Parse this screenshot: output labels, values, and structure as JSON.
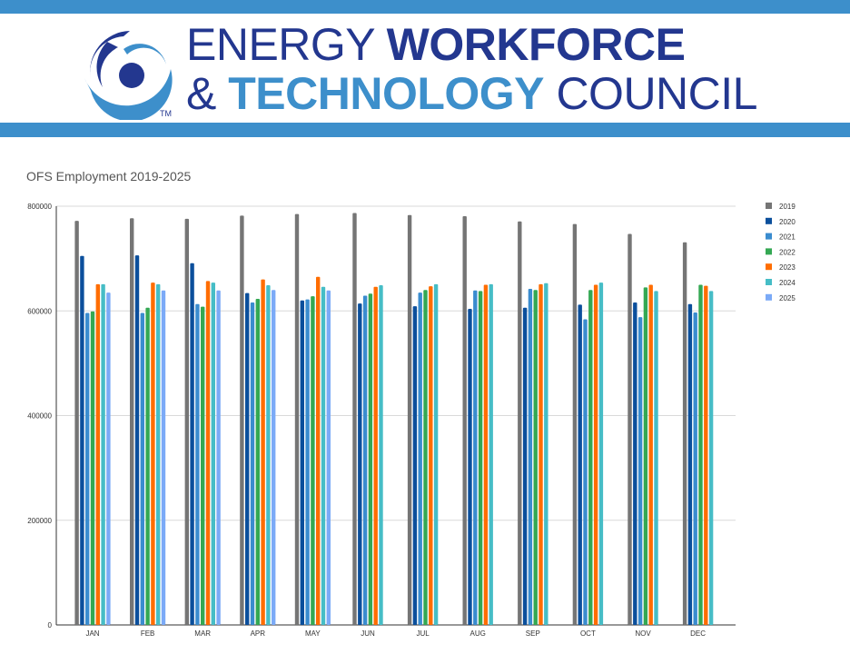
{
  "header": {
    "line1_thin": "ENERGY ",
    "line1_bold": "WORKFORCE",
    "line2_amp": "& ",
    "line2_bold": "TECHNOLOGY",
    "line2_thin": " COUNCIL",
    "trademark": "TM",
    "band_color": "#3d8fcb"
  },
  "chart_data": {
    "type": "bar",
    "title": "OFS Employment 2019-2025",
    "xlabel": "",
    "ylabel": "",
    "ylim": [
      0,
      800000
    ],
    "yticks": [
      "0",
      "200000",
      "400000",
      "600000",
      "800000"
    ],
    "grid": true,
    "legend_position": "right",
    "categories": [
      "JAN",
      "FEB",
      "MAR",
      "APR",
      "MAY",
      "JUN",
      "JUL",
      "AUG",
      "SEP",
      "OCT",
      "NOV",
      "DEC"
    ],
    "series": [
      {
        "name": "2019",
        "color": "#757575",
        "values": [
          772000,
          777000,
          776000,
          782000,
          785000,
          787000,
          783000,
          781000,
          771000,
          766000,
          747000,
          731000
        ]
      },
      {
        "name": "2020",
        "color": "#0b4f9c",
        "values": [
          705000,
          706000,
          691000,
          634000,
          620000,
          614000,
          609000,
          604000,
          606000,
          612000,
          616000,
          613000
        ]
      },
      {
        "name": "2021",
        "color": "#3a8ccf",
        "values": [
          596000,
          596000,
          613000,
          616000,
          622000,
          629000,
          635000,
          639000,
          642000,
          584000,
          588000,
          597000
        ]
      },
      {
        "name": "2022",
        "color": "#34a853",
        "values": [
          599000,
          606000,
          608000,
          623000,
          628000,
          633000,
          640000,
          638000,
          640000,
          640000,
          645000,
          650000
        ]
      },
      {
        "name": "2023",
        "color": "#ff6d01",
        "values": [
          651000,
          654000,
          657000,
          660000,
          665000,
          646000,
          647000,
          650000,
          651000,
          650000,
          650000,
          648000
        ]
      },
      {
        "name": "2024",
        "color": "#46bdc6",
        "values": [
          651000,
          651000,
          654000,
          649000,
          646000,
          649000,
          651000,
          651000,
          653000,
          654000,
          638000,
          638000
        ]
      },
      {
        "name": "2025",
        "color": "#7baaf7",
        "values": [
          635000,
          639000,
          639000,
          640000,
          639000,
          null,
          null,
          null,
          null,
          null,
          null,
          null
        ]
      }
    ]
  }
}
